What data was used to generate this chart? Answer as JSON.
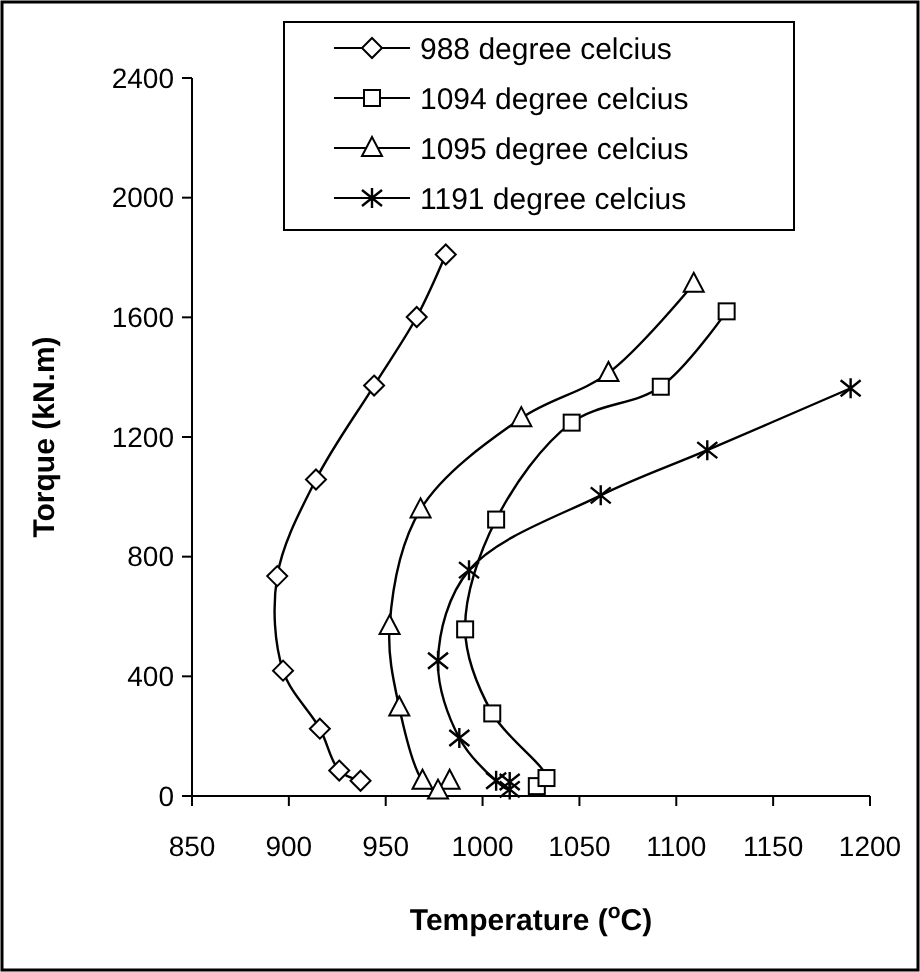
{
  "chart_data": {
    "type": "line",
    "xlabel": "Temperature ($^{o}$C)",
    "ylabel": "Torque (kN.m)",
    "xlim": [
      850,
      1200
    ],
    "xticks": [
      850,
      900,
      950,
      1000,
      1050,
      1100,
      1150,
      1200
    ],
    "ylim": [
      0,
      2400
    ],
    "yticks": [
      0,
      400,
      800,
      1200,
      1600,
      2000,
      2400
    ],
    "grid": false,
    "legend": "top",
    "line_style": "solid",
    "series": [
      {
        "name": "988 degree celcius",
        "color": "#000000",
        "marker": "diamond",
        "x": [
          937,
          926,
          916,
          897,
          894,
          914,
          944,
          966,
          981
        ],
        "values": [
          51,
          85,
          225,
          419,
          735,
          1058,
          1372,
          1601,
          1810
        ]
      },
      {
        "name": "1094 degree celcius",
        "color": "#000000",
        "marker": "square",
        "x": [
          1028,
          1033,
          1005,
          991,
          1007,
          1046,
          1092,
          1126
        ],
        "values": [
          33,
          60,
          276,
          557,
          924,
          1248,
          1368,
          1620
        ]
      },
      {
        "name": "1095 degree celcius",
        "color": "#000000",
        "marker": "triangle",
        "x": [
          983,
          977,
          969,
          957,
          952,
          968,
          1020,
          1065,
          1109
        ],
        "values": [
          51,
          18,
          51,
          296,
          568,
          958,
          1263,
          1414,
          1712
        ]
      },
      {
        "name": "1191 degree celcius",
        "color": "#000000",
        "marker": "cross",
        "x": [
          1014,
          1014,
          1007,
          988,
          977,
          993,
          1061,
          1116,
          1190
        ],
        "values": [
          47,
          22,
          51,
          194,
          452,
          755,
          1005,
          1156,
          1363
        ]
      }
    ]
  }
}
